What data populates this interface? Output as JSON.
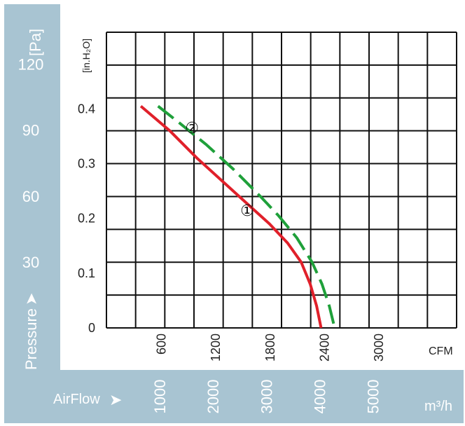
{
  "chart_data": {
    "type": "line",
    "title": "",
    "xlabel": "AirFlow",
    "x_unit_top": "CFM",
    "x_unit_bottom": "m³/h",
    "ylabel": "Pressure",
    "y_unit_left": "[Pa]",
    "y_unit_right": "[in.H₂O]",
    "xlim": [
      0,
      3000
    ],
    "ylim": [
      0,
      0.4
    ],
    "x_ticks_cfm": [
      "600",
      "1200",
      "1800",
      "2400",
      "3000"
    ],
    "x_ticks_m3h": [
      "1000",
      "2000",
      "3000",
      "4000",
      "5000"
    ],
    "y_ticks_inh2o": [
      "0",
      "0.1",
      "0.2",
      "0.3",
      "0.4"
    ],
    "y_ticks_pa": [
      "30",
      "60",
      "90",
      "120"
    ],
    "series": [
      {
        "name": "①",
        "color": "#e0202a",
        "style": "solid",
        "points": [
          [
            380,
            0.405
          ],
          [
            700,
            0.36
          ],
          [
            1000,
            0.31
          ],
          [
            1300,
            0.265
          ],
          [
            1600,
            0.22
          ],
          [
            1800,
            0.19
          ],
          [
            2000,
            0.155
          ],
          [
            2150,
            0.12
          ],
          [
            2250,
            0.08
          ],
          [
            2320,
            0.04
          ],
          [
            2370,
            0.0
          ]
        ]
      },
      {
        "name": "②",
        "color": "#1fa03a",
        "style": "dashed",
        "points": [
          [
            570,
            0.405
          ],
          [
            800,
            0.375
          ],
          [
            1100,
            0.335
          ],
          [
            1400,
            0.29
          ],
          [
            1700,
            0.24
          ],
          [
            1900,
            0.205
          ],
          [
            2100,
            0.165
          ],
          [
            2270,
            0.12
          ],
          [
            2380,
            0.08
          ],
          [
            2460,
            0.04
          ],
          [
            2520,
            0.0
          ]
        ]
      }
    ],
    "grid": true,
    "colors": {
      "panel": "#a8c4d2",
      "axis_text_light": "#ffffff",
      "axis_text_dark": "#222222",
      "grid": "#111111"
    }
  }
}
